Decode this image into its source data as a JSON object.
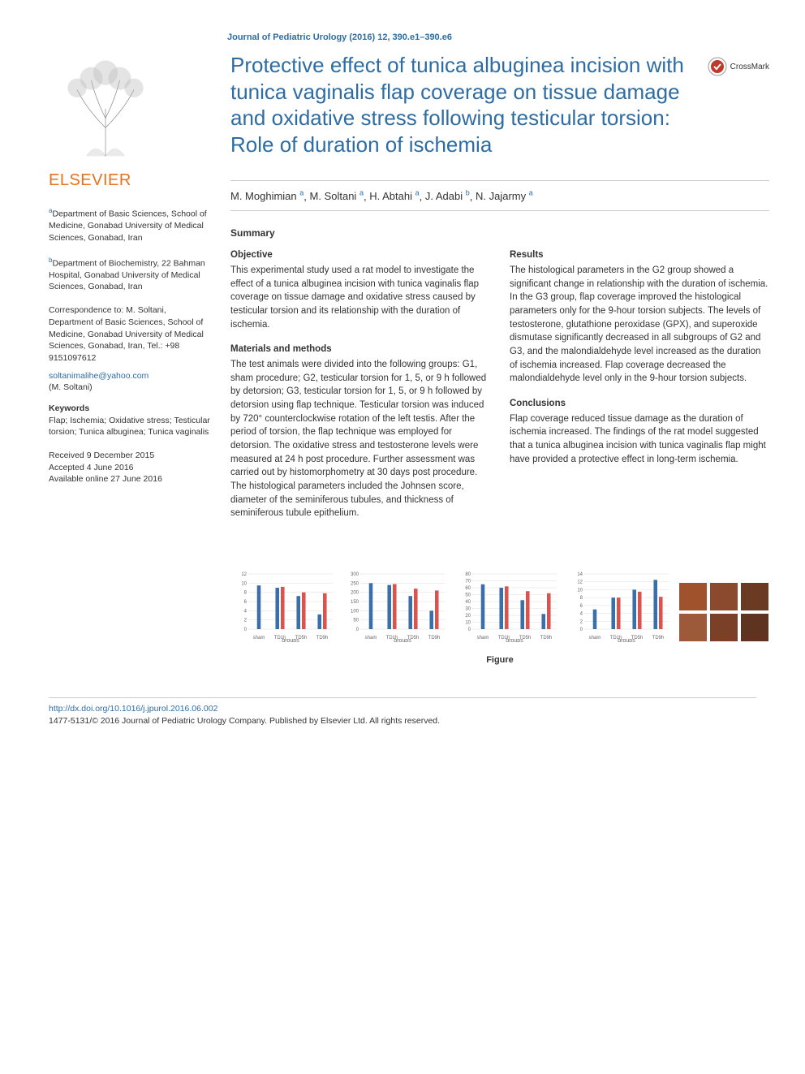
{
  "journal_header": "Journal of Pediatric Urology (2016) 12, 390.e1–390.e6",
  "publisher": "ELSEVIER",
  "title": "Protective effect of tunica albuginea incision with tunica vaginalis flap coverage on tissue damage and oxidative stress following testicular torsion: Role of duration of ischemia",
  "crossmark": "CrossMark",
  "authors_line": "M. Moghimian ᵃ, M. Soltani ᵃ, H. Abtahi ᵃ, J. Adabi ᵇ, N. Jajarmy ᵃ",
  "authors": [
    {
      "name": "M. Moghimian",
      "aff": "a"
    },
    {
      "name": "M. Soltani",
      "aff": "a"
    },
    {
      "name": "H. Abtahi",
      "aff": "a"
    },
    {
      "name": "J. Adabi",
      "aff": "b"
    },
    {
      "name": "N. Jajarmy",
      "aff": "a"
    }
  ],
  "affiliations": {
    "a": "Department of Basic Sciences, School of Medicine, Gonabad University of Medical Sciences, Gonabad, Iran",
    "b": "Department of Biochemistry, 22 Bahman Hospital, Gonabad University of Medical Sciences, Gonabad, Iran"
  },
  "correspondence": "Correspondence to: M. Soltani, Department of Basic Sciences, School of Medicine, Gonabad University of Medical Sciences, Gonabad, Iran, Tel.: +98 9151097612",
  "email": "soltanimalihe@yahoo.com",
  "email_person": "(M. Soltani)",
  "keywords_label": "Keywords",
  "keywords": "Flap; Ischemia; Oxidative stress; Testicular torsion; Tunica albuginea; Tunica vaginalis",
  "dates": {
    "received": "Received 9 December 2015",
    "accepted": "Accepted 4 June 2016",
    "online": "Available online 27 June 2016"
  },
  "summary_label": "Summary",
  "abstract": {
    "objective": {
      "heading": "Objective",
      "text": "This experimental study used a rat model to investigate the effect of a tunica albuginea incision with tunica vaginalis flap coverage on tissue damage and oxidative stress caused by testicular torsion and its relationship with the duration of ischemia."
    },
    "methods": {
      "heading": "Materials and methods",
      "text": "The test animals were divided into the following groups: G1, sham procedure; G2, testicular torsion for 1, 5, or 9 h followed by detorsion; G3, testicular torsion for 1, 5, or 9 h followed by detorsion using flap technique. Testicular torsion was induced by 720° counterclockwise rotation of the left testis. After the period of torsion, the flap technique was employed for detorsion. The oxidative stress and testosterone levels were measured at 24 h post procedure. Further assessment was carried out by histomorphometry at 30 days post procedure. The histological parameters included the Johnsen score, diameter of the seminiferous tubules, and thickness of seminiferous tubule epithelium."
    },
    "results": {
      "heading": "Results",
      "text": "The histological parameters in the G2 group showed a significant change in relationship with the duration of ischemia. In the G3 group, flap coverage improved the histological parameters only for the 9-hour torsion subjects. The levels of testosterone, glutathione peroxidase (GPX), and superoxide dismutase significantly decreased in all subgroups of G2 and G3, and the malondialdehyde level increased as the duration of ischemia increased. Flap coverage decreased the malondialdehyde level only in the 9-hour torsion subjects."
    },
    "conclusions": {
      "heading": "Conclusions",
      "text": "Flap coverage reduced tissue damage as the duration of ischemia increased. The findings of the rat model suggested that a tunica albuginea incision with tunica vaginalis flap might have provided a protective effect in long-term ischemia."
    }
  },
  "charts": {
    "type": "grouped-bar",
    "count": 4,
    "x_categories": [
      "TD1h",
      "TD5h",
      "TD9h"
    ],
    "x_label": "groups",
    "series_colors": [
      "#3b6fa8",
      "#d9534f"
    ],
    "bar_width": 0.35,
    "background_color": "#ffffff",
    "grid_color": "#dddddd",
    "label_fontsize": 7,
    "tick_fontsize": 6,
    "panels": [
      {
        "y_label": "",
        "ylim": [
          0,
          12
        ],
        "ytick_step": 2,
        "values_a": [
          9.0,
          7.2,
          3.2
        ],
        "values_b": [
          9.2,
          8.0,
          7.8
        ],
        "sham": 9.5
      },
      {
        "y_label": "",
        "ylim": [
          0,
          300
        ],
        "ytick_step": 50,
        "values_a": [
          240,
          180,
          100
        ],
        "values_b": [
          245,
          220,
          210
        ],
        "sham": 250
      },
      {
        "y_label": "",
        "ylim": [
          0,
          80
        ],
        "ytick_step": 10,
        "values_a": [
          60,
          42,
          22
        ],
        "values_b": [
          62,
          55,
          52
        ],
        "sham": 65
      },
      {
        "y_label": "",
        "ylim": [
          0,
          14
        ],
        "ytick_step": 2,
        "values_a": [
          8,
          10,
          12.5
        ],
        "values_b": [
          8,
          9.5,
          8.2
        ],
        "sham": 5
      }
    ]
  },
  "histology": {
    "rows": 2,
    "cols": 3,
    "cell_colors": [
      "#a0522d",
      "#8b4a2e",
      "#6b3a22",
      "#9c5a3a",
      "#7a4028",
      "#5e3420"
    ]
  },
  "figure_caption": "Figure",
  "footer": {
    "doi": "http://dx.doi.org/10.1016/j.jpurol.2016.06.002",
    "copyright": "1477-5131/© 2016 Journal of Pediatric Urology Company. Published by Elsevier Ltd. All rights reserved."
  },
  "colors": {
    "link": "#2e6da4",
    "accent": "#e9711c",
    "text": "#333333",
    "border": "#cccccc"
  }
}
